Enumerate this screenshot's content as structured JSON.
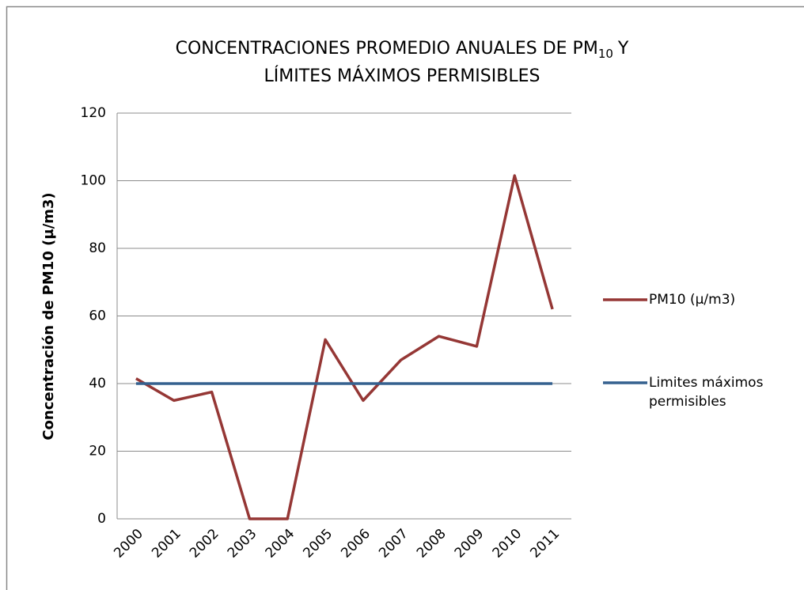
{
  "chart_data": {
    "type": "line",
    "title": [
      "CONCENTRACIONES PROMEDIO ANUALES DE PM",
      "10",
      "Y",
      "LÍMITES MÁXIMOS PERMISIBLES"
    ],
    "y_label": "Concentración de PM10 (µ/m3)",
    "categories": [
      "2000",
      "2001",
      "2002",
      "2003",
      "2004",
      "2005",
      "2006",
      "2007",
      "2008",
      "2009",
      "2010",
      "2011"
    ],
    "series": [
      {
        "name": "PM10 (µ/m3)",
        "color": "#953735",
        "values": [
          41.5,
          35,
          37.5,
          0,
          0,
          53,
          35,
          47,
          54,
          51,
          101.5,
          62
        ]
      },
      {
        "name": "Limites máximos permisibles",
        "color": "#35618f",
        "values": [
          40,
          40,
          40,
          40,
          40,
          40,
          40,
          40,
          40,
          40,
          40,
          40
        ]
      }
    ],
    "ylim": [
      0,
      120
    ],
    "yticks": [
      0,
      20,
      40,
      60,
      80,
      100,
      120
    ],
    "grid": true,
    "legend": "right"
  }
}
